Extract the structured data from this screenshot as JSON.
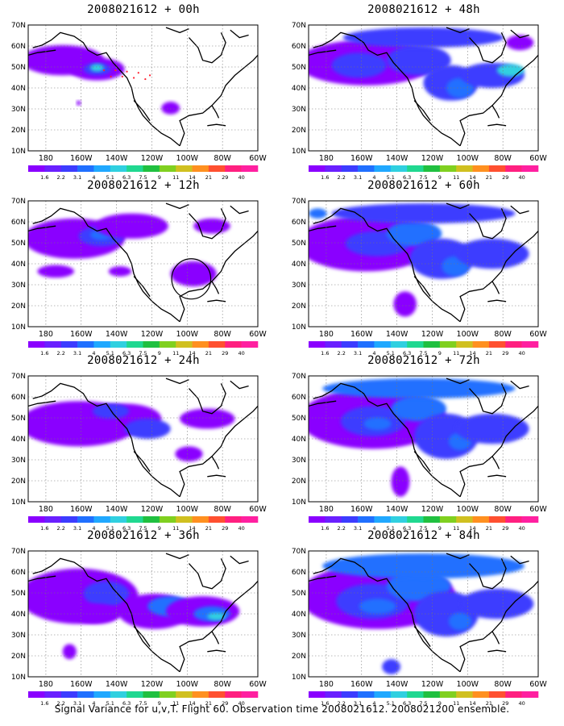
{
  "panels": [
    {
      "title": "2008021612 + 00h",
      "variant": 0
    },
    {
      "title": "2008021612 + 48h",
      "variant": 4
    },
    {
      "title": "2008021612 + 12h",
      "variant": 1
    },
    {
      "title": "2008021612 + 60h",
      "variant": 5
    },
    {
      "title": "2008021612 + 24h",
      "variant": 2
    },
    {
      "title": "2008021612 + 72h",
      "variant": 6
    },
    {
      "title": "2008021612 + 36h",
      "variant": 3
    },
    {
      "title": "2008021612 + 84h",
      "variant": 7
    }
  ],
  "lat_labels": [
    "70N",
    "60N",
    "50N",
    "40N",
    "30N",
    "20N",
    "10N"
  ],
  "lon_labels": [
    "180",
    "160W",
    "140W",
    "120W",
    "100W",
    "80W",
    "60W"
  ],
  "colorbar": {
    "labels": [
      "1.6",
      "2.2",
      "3.1",
      "4",
      "5.1",
      "6.3",
      "7.5",
      "9",
      "11",
      "14",
      "21",
      "29",
      "40"
    ],
    "colors": [
      "#8a00ff",
      "#6a20ff",
      "#3c3cff",
      "#2070ff",
      "#20a8ff",
      "#30d0e0",
      "#20d890",
      "#20c040",
      "#80d020",
      "#d0c020",
      "#ff9020",
      "#ff5030",
      "#ff2080",
      "#ff20a0"
    ]
  },
  "footer": "Signal Variance for u,v,T. Flight 60. Observation time 2008021612. 2008021200 ensemble."
}
